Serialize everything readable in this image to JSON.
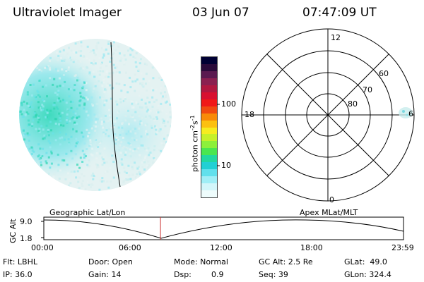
{
  "header": {
    "instrument": "Ultraviolet Imager",
    "date": "03 Jun 07",
    "time": "07:47:09 UT"
  },
  "colorbar": {
    "unit_main": "photon cm",
    "unit_sup1": "-2",
    "unit_mid": "s",
    "unit_sup2": "-1",
    "tick_labels": [
      "100",
      "10"
    ],
    "colors": [
      "#000033",
      "#2a0a3a",
      "#5a1a50",
      "#8a2050",
      "#b01840",
      "#d81030",
      "#f01818",
      "#f04a10",
      "#f88a08",
      "#fcc010",
      "#f6ec20",
      "#c6f02a",
      "#8cf03a",
      "#4ae650",
      "#22d8a0",
      "#22d0d4",
      "#62e0ec",
      "#a0eef6",
      "#d2f6fa",
      "#eefcfc"
    ]
  },
  "polar_plot": {
    "mlt_labels": {
      "top": "12",
      "right": "6",
      "bottom": "0",
      "left": "18"
    },
    "lat_labels": [
      "60",
      "70",
      "80"
    ]
  },
  "timeline": {
    "left_caption": "Geographic Lat/Lon",
    "right_caption": "Apex MLat/MLT",
    "axis_name": "GC Alt",
    "y_ticks": [
      "9.0",
      "1.8"
    ],
    "x_ticks": [
      "00:00",
      "06:00",
      "12:00",
      "18:00",
      "23:59"
    ],
    "current_time_fraction": 0.3244
  },
  "status": {
    "flt": "Flt: LBHL",
    "door": "Door: Open",
    "mode": "Mode: Normal",
    "gc_alt": "GC Alt: 2.5 Re",
    "glat": "GLat:  49.0",
    "ip": "IP: 36.0",
    "gain": "Gain: 14",
    "dsp_label": "Dsp:",
    "dsp_value": "0.9",
    "seq": "Seq: 39",
    "glon": "GLon: 324.4"
  }
}
